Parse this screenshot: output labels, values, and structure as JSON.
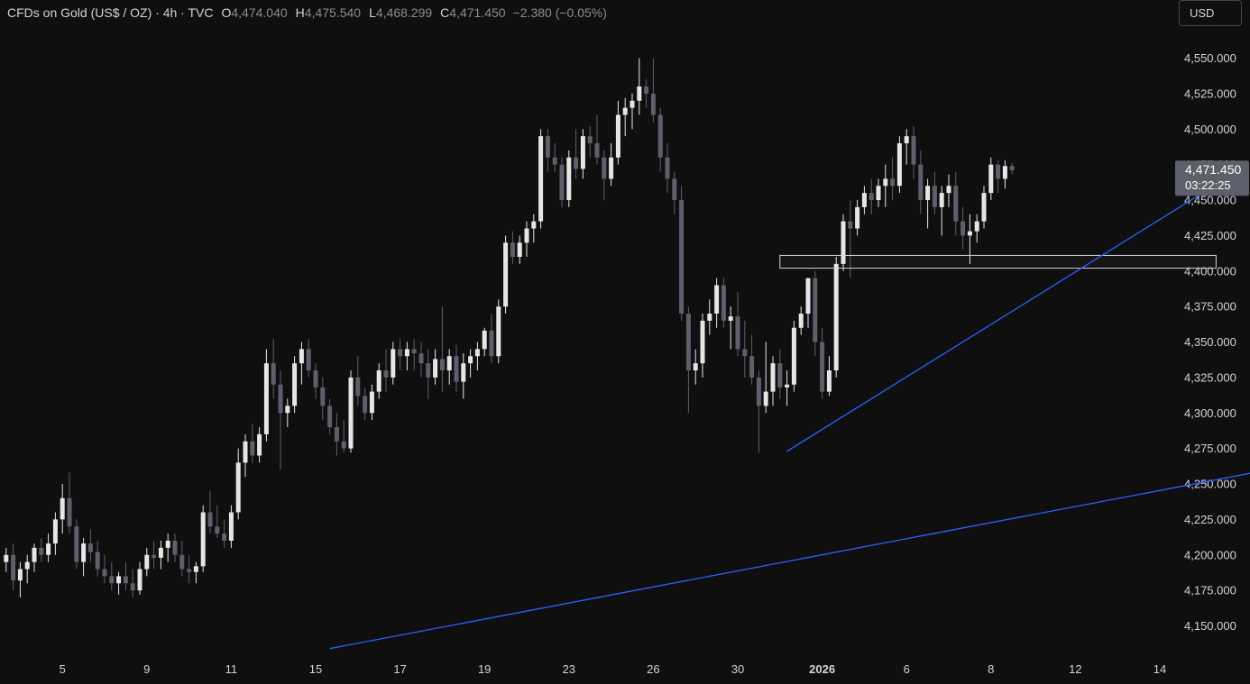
{
  "header": {
    "symbol": "CFDs on Gold (US$ / OZ) · 4h · TVC",
    "open_label": "O",
    "open": "4,474.040",
    "high_label": "H",
    "high": "4,475.540",
    "low_label": "L",
    "low": "4,468.299",
    "close_label": "C",
    "close": "4,471.450",
    "change": "−2.380 (−0.05%)"
  },
  "currency_button": "USD",
  "colors": {
    "background": "#0f0f0f",
    "candle_up": "#e6e6e6",
    "candle_down": "#5d606b",
    "trendline": "#2962ff",
    "price_tag": "#5d606b",
    "text": "#d1d4dc"
  },
  "chart_data": {
    "type": "candlestick",
    "timeframe": "4h",
    "current_price": "4,471.450",
    "countdown": "03:22:25",
    "ylim": [
      4130,
      4570
    ],
    "y_ticks": [
      4150,
      4175,
      4200,
      4225,
      4250,
      4275,
      4300,
      4325,
      4350,
      4375,
      4400,
      4425,
      4450,
      4475,
      4500,
      4525,
      4550
    ],
    "y_tick_labels": [
      "4,150.000",
      "4,175.000",
      "4,200.000",
      "4,225.000",
      "4,250.000",
      "4,275.000",
      "4,300.000",
      "4,325.000",
      "4,350.000",
      "4,375.000",
      "4,400.000",
      "4,425.000",
      "4,450.000",
      "4,475.000",
      "4,500.000",
      "4,525.000",
      "4,550.000"
    ],
    "x_ticks": [
      {
        "label": "5",
        "index": 8
      },
      {
        "label": "9",
        "index": 20
      },
      {
        "label": "11",
        "index": 32
      },
      {
        "label": "15",
        "index": 44
      },
      {
        "label": "17",
        "index": 56
      },
      {
        "label": "19",
        "index": 68
      },
      {
        "label": "23",
        "index": 80
      },
      {
        "label": "26",
        "index": 92
      },
      {
        "label": "30",
        "index": 104
      },
      {
        "label": "2026",
        "index": 116,
        "bold": true
      },
      {
        "label": "6",
        "index": 128
      },
      {
        "label": "8",
        "index": 140
      },
      {
        "label": "12",
        "index": 152
      },
      {
        "label": "14",
        "index": 164
      }
    ],
    "ohlc": [
      [
        4195,
        4205,
        4188,
        4200
      ],
      [
        4200,
        4208,
        4175,
        4182
      ],
      [
        4182,
        4195,
        4170,
        4190
      ],
      [
        4190,
        4200,
        4180,
        4195
      ],
      [
        4195,
        4208,
        4188,
        4205
      ],
      [
        4205,
        4212,
        4195,
        4200
      ],
      [
        4200,
        4215,
        4195,
        4208
      ],
      [
        4208,
        4230,
        4200,
        4225
      ],
      [
        4225,
        4250,
        4215,
        4240
      ],
      [
        4240,
        4258,
        4215,
        4220
      ],
      [
        4220,
        4225,
        4190,
        4195
      ],
      [
        4195,
        4212,
        4185,
        4208
      ],
      [
        4208,
        4218,
        4195,
        4202
      ],
      [
        4202,
        4210,
        4185,
        4190
      ],
      [
        4190,
        4200,
        4180,
        4185
      ],
      [
        4185,
        4195,
        4175,
        4180
      ],
      [
        4180,
        4188,
        4172,
        4185
      ],
      [
        4185,
        4195,
        4175,
        4180
      ],
      [
        4180,
        4190,
        4170,
        4175
      ],
      [
        4175,
        4195,
        4172,
        4190
      ],
      [
        4190,
        4205,
        4185,
        4200
      ],
      [
        4200,
        4210,
        4190,
        4198
      ],
      [
        4198,
        4210,
        4190,
        4205
      ],
      [
        4205,
        4215,
        4195,
        4210
      ],
      [
        4210,
        4215,
        4195,
        4200
      ],
      [
        4200,
        4210,
        4185,
        4190
      ],
      [
        4190,
        4200,
        4180,
        4188
      ],
      [
        4188,
        4195,
        4180,
        4192
      ],
      [
        4192,
        4235,
        4188,
        4230
      ],
      [
        4230,
        4245,
        4215,
        4220
      ],
      [
        4220,
        4235,
        4212,
        4215
      ],
      [
        4215,
        4225,
        4205,
        4210
      ],
      [
        4210,
        4235,
        4205,
        4230
      ],
      [
        4230,
        4275,
        4225,
        4265
      ],
      [
        4265,
        4285,
        4255,
        4280
      ],
      [
        4280,
        4292,
        4265,
        4270
      ],
      [
        4270,
        4290,
        4265,
        4285
      ],
      [
        4285,
        4345,
        4280,
        4335
      ],
      [
        4335,
        4352,
        4310,
        4320
      ],
      [
        4320,
        4330,
        4260,
        4300
      ],
      [
        4300,
        4310,
        4290,
        4305
      ],
      [
        4305,
        4340,
        4300,
        4335
      ],
      [
        4335,
        4350,
        4320,
        4345
      ],
      [
        4345,
        4352,
        4325,
        4330
      ],
      [
        4330,
        4335,
        4310,
        4318
      ],
      [
        4318,
        4325,
        4295,
        4305
      ],
      [
        4305,
        4310,
        4285,
        4290
      ],
      [
        4290,
        4300,
        4270,
        4280
      ],
      [
        4280,
        4295,
        4272,
        4275
      ],
      [
        4275,
        4330,
        4272,
        4325
      ],
      [
        4325,
        4340,
        4305,
        4312
      ],
      [
        4312,
        4318,
        4295,
        4300
      ],
      [
        4300,
        4320,
        4295,
        4315
      ],
      [
        4315,
        4335,
        4310,
        4330
      ],
      [
        4330,
        4345,
        4315,
        4325
      ],
      [
        4325,
        4350,
        4320,
        4345
      ],
      [
        4345,
        4352,
        4330,
        4340
      ],
      [
        4340,
        4350,
        4330,
        4345
      ],
      [
        4345,
        4352,
        4330,
        4342
      ],
      [
        4342,
        4350,
        4325,
        4335
      ],
      [
        4335,
        4345,
        4310,
        4325
      ],
      [
        4325,
        4345,
        4320,
        4338
      ],
      [
        4338,
        4375,
        4315,
        4330
      ],
      [
        4330,
        4345,
        4320,
        4340
      ],
      [
        4340,
        4348,
        4315,
        4322
      ],
      [
        4322,
        4342,
        4310,
        4335
      ],
      [
        4335,
        4345,
        4325,
        4340
      ],
      [
        4340,
        4350,
        4330,
        4345
      ],
      [
        4345,
        4360,
        4340,
        4358
      ],
      [
        4358,
        4370,
        4335,
        4340
      ],
      [
        4340,
        4380,
        4335,
        4375
      ],
      [
        4375,
        4425,
        4370,
        4420
      ],
      [
        4420,
        4428,
        4405,
        4410
      ],
      [
        4410,
        4425,
        4405,
        4420
      ],
      [
        4420,
        4435,
        4410,
        4430
      ],
      [
        4430,
        4440,
        4420,
        4435
      ],
      [
        4435,
        4500,
        4430,
        4495
      ],
      [
        4495,
        4500,
        4470,
        4480
      ],
      [
        4480,
        4490,
        4470,
        4475
      ],
      [
        4475,
        4480,
        4445,
        4450
      ],
      [
        4450,
        4485,
        4445,
        4480
      ],
      [
        4480,
        4500,
        4465,
        4472
      ],
      [
        4472,
        4500,
        4465,
        4495
      ],
      [
        4495,
        4502,
        4480,
        4490
      ],
      [
        4490,
        4510,
        4475,
        4480
      ],
      [
        4480,
        4485,
        4450,
        4465
      ],
      [
        4465,
        4490,
        4460,
        4480
      ],
      [
        4480,
        4520,
        4475,
        4510
      ],
      [
        4510,
        4522,
        4495,
        4515
      ],
      [
        4515,
        4525,
        4500,
        4520
      ],
      [
        4520,
        4550,
        4510,
        4530
      ],
      [
        4530,
        4535,
        4515,
        4525
      ],
      [
        4525,
        4550,
        4505,
        4510
      ],
      [
        4510,
        4515,
        4470,
        4480
      ],
      [
        4480,
        4490,
        4455,
        4465
      ],
      [
        4465,
        4470,
        4440,
        4450
      ],
      [
        4450,
        4460,
        4365,
        4370
      ],
      [
        4370,
        4375,
        4300,
        4330
      ],
      [
        4330,
        4345,
        4320,
        4335
      ],
      [
        4335,
        4370,
        4325,
        4365
      ],
      [
        4365,
        4380,
        4355,
        4370
      ],
      [
        4370,
        4395,
        4360,
        4390
      ],
      [
        4390,
        4395,
        4360,
        4365
      ],
      [
        4365,
        4375,
        4345,
        4368
      ],
      [
        4368,
        4385,
        4340,
        4345
      ],
      [
        4345,
        4365,
        4325,
        4340
      ],
      [
        4340,
        4355,
        4320,
        4325
      ],
      [
        4325,
        4330,
        4272,
        4305
      ],
      [
        4305,
        4350,
        4300,
        4315
      ],
      [
        4315,
        4340,
        4305,
        4335
      ],
      [
        4335,
        4345,
        4310,
        4318
      ],
      [
        4318,
        4330,
        4305,
        4320
      ],
      [
        4320,
        4365,
        4315,
        4360
      ],
      [
        4360,
        4375,
        4355,
        4370
      ],
      [
        4370,
        4395,
        4360,
        4395
      ],
      [
        4395,
        4400,
        4340,
        4350
      ],
      [
        4350,
        4360,
        4310,
        4315
      ],
      [
        4315,
        4340,
        4312,
        4330
      ],
      [
        4330,
        4410,
        4325,
        4405
      ],
      [
        4405,
        4440,
        4400,
        4435
      ],
      [
        4435,
        4450,
        4395,
        4430
      ],
      [
        4430,
        4450,
        4425,
        4445
      ],
      [
        4445,
        4460,
        4440,
        4455
      ],
      [
        4455,
        4465,
        4440,
        4450
      ],
      [
        4450,
        4465,
        4445,
        4460
      ],
      [
        4460,
        4475,
        4445,
        4465
      ],
      [
        4465,
        4480,
        4450,
        4460
      ],
      [
        4460,
        4495,
        4455,
        4490
      ],
      [
        4490,
        4500,
        4475,
        4495
      ],
      [
        4495,
        4502,
        4465,
        4475
      ],
      [
        4475,
        4485,
        4440,
        4450
      ],
      [
        4450,
        4465,
        4430,
        4460
      ],
      [
        4460,
        4470,
        4440,
        4445
      ],
      [
        4445,
        4460,
        4425,
        4455
      ],
      [
        4455,
        4468,
        4445,
        4460
      ],
      [
        4460,
        4470,
        4425,
        4435
      ],
      [
        4435,
        4445,
        4415,
        4425
      ],
      [
        4425,
        4440,
        4405,
        4428
      ],
      [
        4428,
        4440,
        4420,
        4435
      ],
      [
        4435,
        4460,
        4430,
        4455
      ],
      [
        4455,
        4480,
        4450,
        4475
      ],
      [
        4475,
        4478,
        4455,
        4465
      ],
      [
        4465,
        4478,
        4458,
        4474
      ],
      [
        4474,
        4476,
        4468,
        4471
      ]
    ],
    "annotations": {
      "zone": {
        "i0": 110,
        "i1": 172,
        "top": 4411,
        "bottom": 4402
      },
      "trendlines": [
        {
          "i0": 111,
          "p0": 4273,
          "i1": 172,
          "p1": 4461
        },
        {
          "i0": 46,
          "p0": 4134,
          "i1": 189,
          "p1": 4269
        }
      ]
    }
  }
}
